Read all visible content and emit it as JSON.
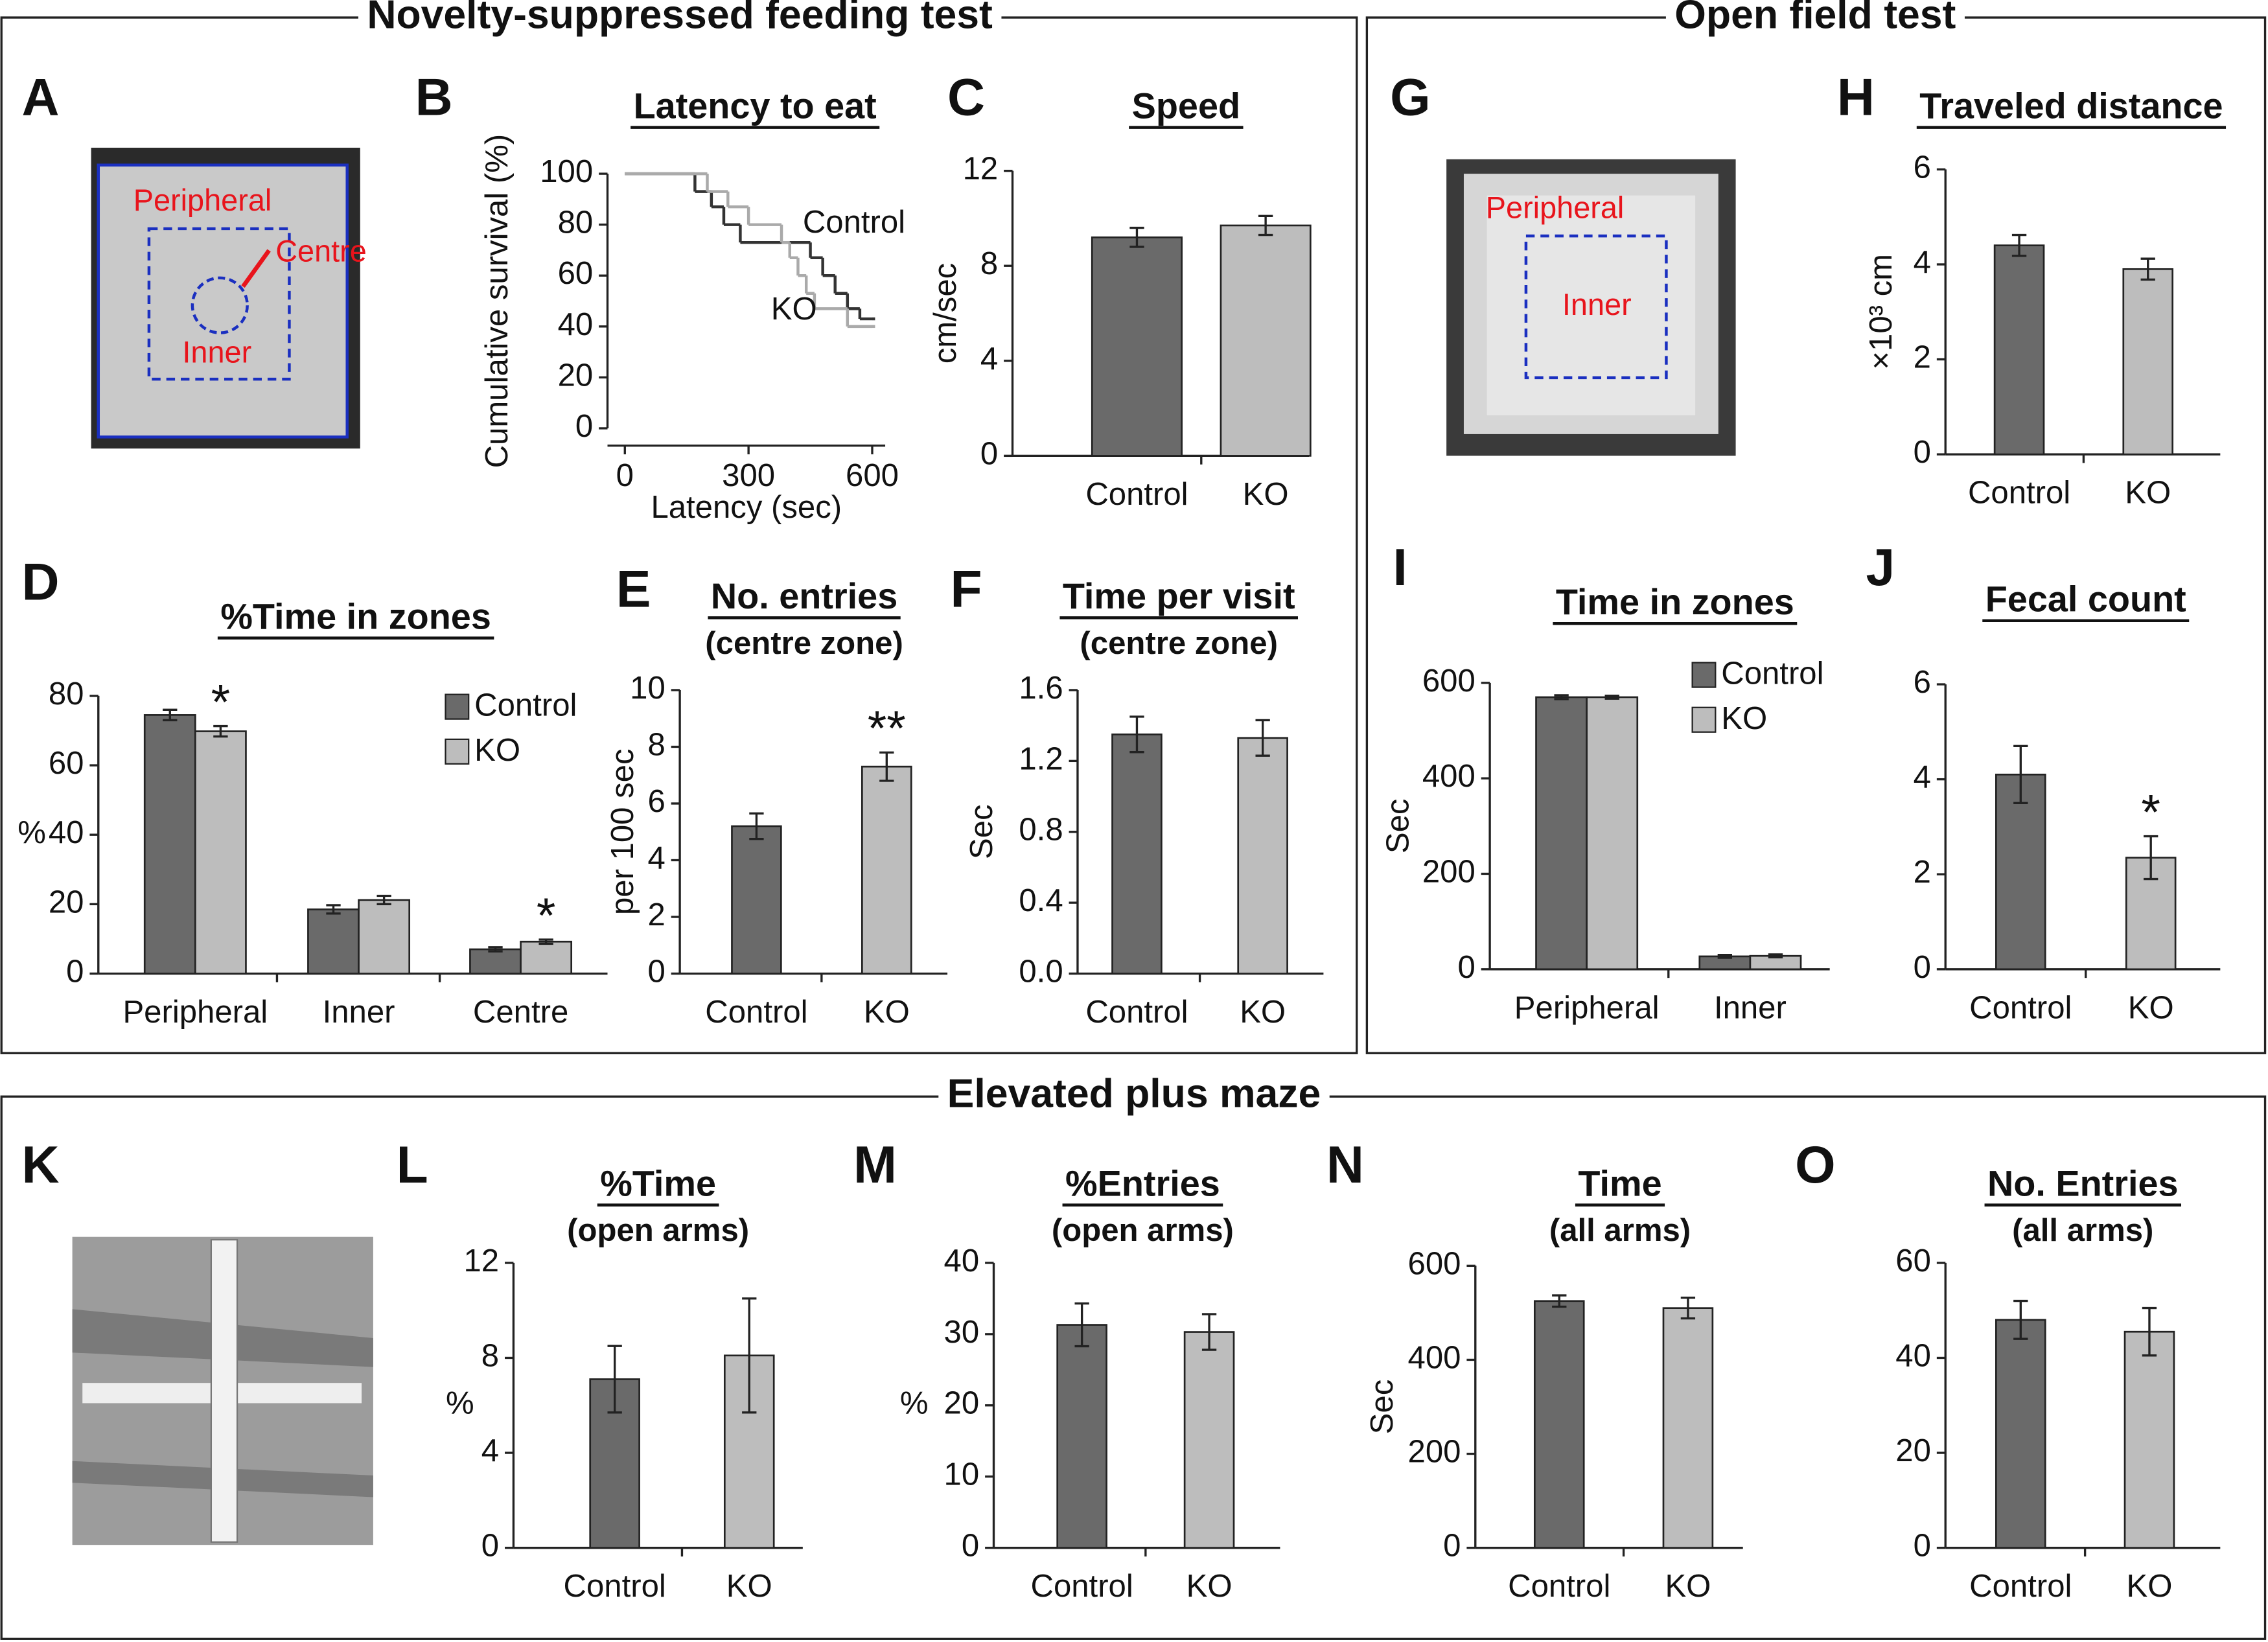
{
  "sections": [
    {
      "title": "Novelty-suppressed feeding test"
    },
    {
      "title": "Open field test"
    },
    {
      "title": "Elevated plus maze"
    }
  ],
  "photos": [
    {
      "panel": "A",
      "labels": [
        "Peripheral",
        "Centre",
        "Inner"
      ]
    },
    {
      "panel": "G",
      "labels": [
        "Peripheral",
        "Inner"
      ]
    },
    {
      "panel": "K"
    }
  ],
  "chart_data": [
    {
      "panel": "B",
      "type": "line",
      "step": true,
      "title": "Latency to eat",
      "ylabel": "Cumulative survival (%)",
      "xlabel": "Latency (sec)",
      "xlim": [
        0,
        600
      ],
      "xticks": [
        0,
        300,
        600
      ],
      "ylim": [
        0,
        100
      ],
      "yticks": [
        0,
        20,
        40,
        60,
        80,
        100
      ],
      "series": [
        {
          "name": "Control",
          "color": "#333333",
          "x": [
            0,
            170,
            210,
            240,
            280,
            450,
            480,
            510,
            540,
            570,
            600
          ],
          "values": [
            100,
            93,
            87,
            80,
            73,
            67,
            60,
            53,
            47,
            43,
            43
          ]
        },
        {
          "name": "KO",
          "color": "#aaaaaa",
          "x": [
            0,
            200,
            250,
            300,
            380,
            400,
            420,
            440,
            460,
            540,
            600
          ],
          "values": [
            100,
            93,
            87,
            80,
            73,
            67,
            60,
            53,
            47,
            40,
            40
          ]
        }
      ]
    },
    {
      "panel": "C",
      "type": "bar",
      "title": "Speed",
      "ylabel": "cm/sec",
      "categories": [
        "Control",
        "KO"
      ],
      "values": [
        9.2,
        9.7
      ],
      "errors": [
        0.4,
        0.4
      ],
      "colors": [
        "#6a6a6a",
        "#bdbdbd"
      ],
      "ylim": [
        0,
        12
      ],
      "yticks": [
        0,
        4,
        8,
        12
      ]
    },
    {
      "panel": "D",
      "type": "bar",
      "title": "%Time in zones",
      "ylabel": "%",
      "categories": [
        "Peripheral",
        "Inner",
        "Centre"
      ],
      "ylim": [
        0,
        80
      ],
      "yticks": [
        0,
        20,
        40,
        60,
        80
      ],
      "legend": "upper right",
      "series": [
        {
          "name": "Control",
          "color": "#6a6a6a",
          "values": [
            74.5,
            18.5,
            7
          ],
          "errors": [
            1.5,
            1.2,
            0.6
          ]
        },
        {
          "name": "KO",
          "color": "#bdbdbd",
          "values": [
            69.8,
            21.2,
            9.2
          ],
          "errors": [
            1.5,
            1.2,
            0.6
          ],
          "annotations": [
            "*",
            null,
            "*"
          ]
        }
      ]
    },
    {
      "panel": "E",
      "type": "bar",
      "title": "No. entries",
      "subtitle": "(centre zone)",
      "ylabel": "per 100 sec",
      "categories": [
        "Control",
        "KO"
      ],
      "values": [
        5.2,
        7.3
      ],
      "errors": [
        0.45,
        0.5
      ],
      "annotations": [
        null,
        "**"
      ],
      "colors": [
        "#6a6a6a",
        "#bdbdbd"
      ],
      "ylim": [
        0,
        10
      ],
      "yticks": [
        0,
        2,
        4,
        6,
        8,
        10
      ]
    },
    {
      "panel": "F",
      "type": "bar",
      "title": "Time per visit",
      "subtitle": "(centre zone)",
      "ylabel": "Sec",
      "categories": [
        "Control",
        "KO"
      ],
      "values": [
        1.35,
        1.33
      ],
      "errors": [
        0.1,
        0.1
      ],
      "colors": [
        "#6a6a6a",
        "#bdbdbd"
      ],
      "ylim": [
        0,
        1.6
      ],
      "yticks": [
        {
          "value": 0,
          "label": "0.0"
        },
        0.4,
        0.8,
        1.2,
        1.6
      ]
    },
    {
      "panel": "H",
      "type": "bar",
      "title": "Traveled distance",
      "ylabel": "×10³ cm",
      "categories": [
        "Control",
        "KO"
      ],
      "values": [
        4.4,
        3.9
      ],
      "errors": [
        0.22,
        0.22
      ],
      "colors": [
        "#6a6a6a",
        "#bdbdbd"
      ],
      "ylim": [
        0,
        6
      ],
      "yticks": [
        0,
        2,
        4,
        6
      ]
    },
    {
      "panel": "I",
      "type": "bar",
      "title": "Time in zones",
      "ylabel": "Sec",
      "categories": [
        "Peripheral",
        "Inner"
      ],
      "ylim": [
        0,
        600
      ],
      "yticks": [
        0,
        200,
        400,
        600
      ],
      "legend": "upper right",
      "series": [
        {
          "name": "Control",
          "color": "#6a6a6a",
          "values": [
            570,
            27
          ],
          "errors": [
            4,
            3
          ]
        },
        {
          "name": "KO",
          "color": "#bdbdbd",
          "values": [
            570,
            28
          ],
          "errors": [
            3,
            3
          ]
        }
      ]
    },
    {
      "panel": "J",
      "type": "bar",
      "title": "Fecal count",
      "categories": [
        "Control",
        "KO"
      ],
      "values": [
        4.1,
        2.35
      ],
      "errors": [
        0.6,
        0.45
      ],
      "annotations": [
        null,
        "*"
      ],
      "colors": [
        "#6a6a6a",
        "#bdbdbd"
      ],
      "ylim": [
        0,
        6
      ],
      "yticks": [
        0,
        2,
        4,
        6
      ]
    },
    {
      "panel": "L",
      "type": "bar",
      "title": "%Time",
      "subtitle": "(open arms)",
      "ylabel": "%",
      "categories": [
        "Control",
        "KO"
      ],
      "values": [
        7.1,
        8.1
      ],
      "errors": [
        1.4,
        2.4
      ],
      "colors": [
        "#6a6a6a",
        "#bdbdbd"
      ],
      "ylim": [
        0,
        12
      ],
      "yticks": [
        0,
        4,
        8,
        12
      ]
    },
    {
      "panel": "M",
      "type": "bar",
      "title": "%Entries",
      "subtitle": "(open arms)",
      "ylabel": "%",
      "categories": [
        "Control",
        "KO"
      ],
      "values": [
        31.3,
        30.3
      ],
      "errors": [
        3,
        2.5
      ],
      "colors": [
        "#6a6a6a",
        "#bdbdbd"
      ],
      "ylim": [
        0,
        40
      ],
      "yticks": [
        0,
        10,
        20,
        30,
        40
      ]
    },
    {
      "panel": "N",
      "type": "bar",
      "title": "Time",
      "subtitle": "(all arms)",
      "ylabel": "Sec",
      "categories": [
        "Control",
        "KO"
      ],
      "values": [
        525,
        510
      ],
      "errors": [
        12,
        22
      ],
      "colors": [
        "#6a6a6a",
        "#bdbdbd"
      ],
      "ylim": [
        0,
        600
      ],
      "yticks": [
        0,
        200,
        400,
        600
      ]
    },
    {
      "panel": "O",
      "type": "bar",
      "title": "No. Entries",
      "subtitle": "(all arms)",
      "categories": [
        "Control",
        "KO"
      ],
      "values": [
        48,
        45.5
      ],
      "errors": [
        4,
        5
      ],
      "colors": [
        "#6a6a6a",
        "#bdbdbd"
      ],
      "ylim": [
        0,
        60
      ],
      "yticks": [
        0,
        20,
        40,
        60
      ]
    }
  ]
}
